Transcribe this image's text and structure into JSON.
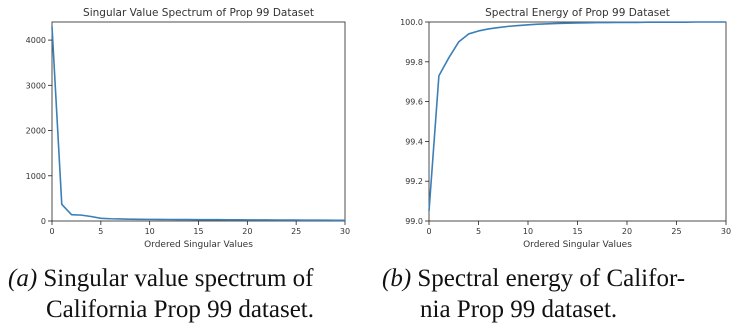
{
  "chart_data": [
    {
      "type": "line",
      "title": "Singular Value Spectrum of Prop 99 Dataset",
      "xlabel": "Ordered Singular Values",
      "ylabel": "",
      "xlim": [
        0,
        30
      ],
      "ylim": [
        0,
        4400
      ],
      "xticks": [
        "0",
        "5",
        "10",
        "15",
        "20",
        "25",
        "30"
      ],
      "yticks": [
        "0",
        "1000",
        "2000",
        "3000",
        "4000"
      ],
      "grid": false,
      "x": [
        0,
        1,
        2,
        3,
        4,
        5,
        6,
        7,
        8,
        9,
        10,
        11,
        12,
        13,
        14,
        15,
        16,
        17,
        18,
        19,
        20,
        21,
        22,
        23,
        24,
        25,
        26,
        27,
        28,
        29,
        30
      ],
      "series": [
        {
          "values": [
            4300,
            370,
            140,
            130,
            100,
            60,
            50,
            45,
            40,
            38,
            36,
            34,
            33,
            32,
            31,
            30,
            29,
            28,
            27,
            26,
            25,
            24,
            23,
            22,
            21,
            20,
            19,
            18,
            17,
            16,
            15
          ]
        }
      ],
      "color": "#3b7fb8"
    },
    {
      "type": "line",
      "title": "Spectral Energy of Prop 99 Dataset",
      "xlabel": "Ordered Singular Values",
      "ylabel": "",
      "xlim": [
        0,
        30
      ],
      "ylim": [
        99.0,
        100.0
      ],
      "xticks": [
        "0",
        "5",
        "10",
        "15",
        "20",
        "25",
        "30"
      ],
      "yticks": [
        "99.0",
        "99.2",
        "99.4",
        "99.6",
        "99.8",
        "100.0"
      ],
      "grid": false,
      "x": [
        0,
        1,
        2,
        3,
        4,
        5,
        6,
        7,
        8,
        9,
        10,
        11,
        12,
        13,
        14,
        15,
        16,
        17,
        18,
        19,
        20,
        21,
        22,
        23,
        24,
        25,
        26,
        27,
        28,
        29,
        30
      ],
      "series": [
        {
          "values": [
            99.05,
            99.73,
            99.82,
            99.9,
            99.94,
            99.955,
            99.965,
            99.972,
            99.978,
            99.982,
            99.986,
            99.989,
            99.991,
            99.993,
            99.994,
            99.995,
            99.996,
            99.997,
            99.997,
            99.998,
            99.998,
            99.998,
            99.999,
            99.999,
            99.999,
            99.999,
            99.999,
            100.0,
            100.0,
            100.0,
            100.0
          ]
        }
      ],
      "color": "#3b7fb8"
    }
  ],
  "captions": [
    {
      "tag": "(a)",
      "line1": " Singular value spectrum of",
      "line2": "California Prop 99 dataset."
    },
    {
      "tag": "(b)",
      "line1": " Spectral energy of Califor-",
      "line2": "nia Prop 99 dataset."
    }
  ]
}
